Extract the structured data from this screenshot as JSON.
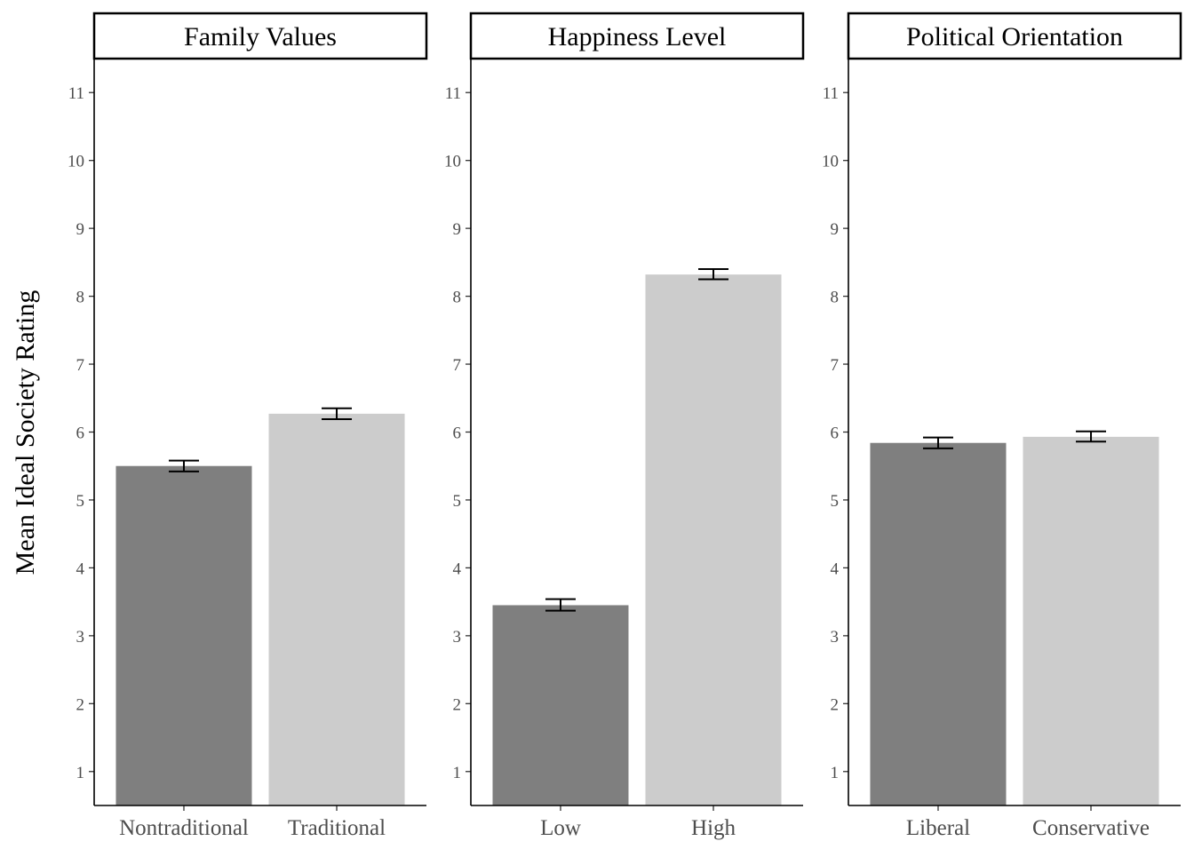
{
  "chart_data": {
    "type": "bar",
    "ylabel": "Mean Ideal Society Rating",
    "ylim": [
      0.5,
      11.5
    ],
    "yticks": [
      1,
      2,
      3,
      4,
      5,
      6,
      7,
      8,
      9,
      10,
      11
    ],
    "grid": false,
    "colors": {
      "dark": "#7f7f7f",
      "light": "#cccccc"
    },
    "panels": [
      {
        "title": "Family Values",
        "categories": [
          "Nontraditional",
          "Traditional"
        ],
        "values": [
          5.5,
          6.27
        ],
        "error_low": [
          5.42,
          6.19
        ],
        "error_high": [
          5.58,
          6.35
        ]
      },
      {
        "title": "Happiness Level",
        "categories": [
          "Low",
          "High"
        ],
        "values": [
          3.45,
          8.32
        ],
        "error_low": [
          3.37,
          8.25
        ],
        "error_high": [
          3.54,
          8.4
        ]
      },
      {
        "title": "Political Orientation",
        "categories": [
          "Liberal",
          "Conservative"
        ],
        "values": [
          5.84,
          5.93
        ],
        "error_low": [
          5.76,
          5.86
        ],
        "error_high": [
          5.92,
          6.01
        ]
      }
    ]
  }
}
